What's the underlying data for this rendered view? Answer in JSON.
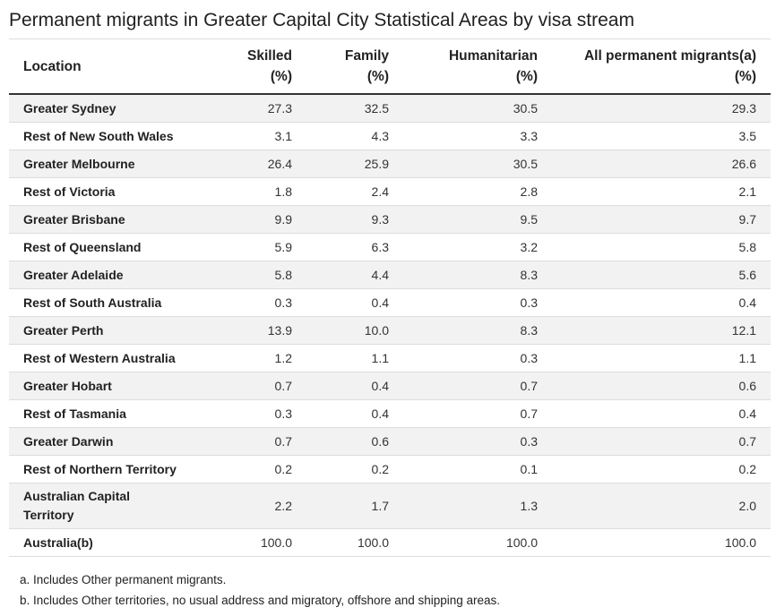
{
  "title": "Permanent migrants in Greater Capital City Statistical Areas by visa stream",
  "table": {
    "headers": [
      {
        "line1": "Location",
        "line2": ""
      },
      {
        "line1": "Skilled",
        "line2": "(%)"
      },
      {
        "line1": "Family",
        "line2": "(%)"
      },
      {
        "line1": "Humanitarian",
        "line2": "(%)"
      },
      {
        "line1": "All permanent migrants(a)",
        "line2": "(%)"
      }
    ],
    "rows": [
      {
        "location": "Greater Sydney",
        "skilled": "27.3",
        "family": "32.5",
        "humanitarian": "30.5",
        "all": "29.3"
      },
      {
        "location": "Rest of New South Wales",
        "skilled": "3.1",
        "family": "4.3",
        "humanitarian": "3.3",
        "all": "3.5"
      },
      {
        "location": "Greater Melbourne",
        "skilled": "26.4",
        "family": "25.9",
        "humanitarian": "30.5",
        "all": "26.6"
      },
      {
        "location": "Rest of Victoria",
        "skilled": "1.8",
        "family": "2.4",
        "humanitarian": "2.8",
        "all": "2.1"
      },
      {
        "location": "Greater Brisbane",
        "skilled": "9.9",
        "family": "9.3",
        "humanitarian": "9.5",
        "all": "9.7"
      },
      {
        "location": "Rest of Queensland",
        "skilled": "5.9",
        "family": "6.3",
        "humanitarian": "3.2",
        "all": "5.8"
      },
      {
        "location": "Greater Adelaide",
        "skilled": "5.8",
        "family": "4.4",
        "humanitarian": "8.3",
        "all": "5.6"
      },
      {
        "location": "Rest of South Australia",
        "skilled": "0.3",
        "family": "0.4",
        "humanitarian": "0.3",
        "all": "0.4"
      },
      {
        "location": "Greater Perth",
        "skilled": "13.9",
        "family": "10.0",
        "humanitarian": "8.3",
        "all": "12.1"
      },
      {
        "location": "Rest of Western Australia",
        "skilled": "1.2",
        "family": "1.1",
        "humanitarian": "0.3",
        "all": "1.1"
      },
      {
        "location": "Greater Hobart",
        "skilled": "0.7",
        "family": "0.4",
        "humanitarian": "0.7",
        "all": "0.6"
      },
      {
        "location": "Rest of Tasmania",
        "skilled": "0.3",
        "family": "0.4",
        "humanitarian": "0.7",
        "all": "0.4"
      },
      {
        "location": "Greater Darwin",
        "skilled": "0.7",
        "family": "0.6",
        "humanitarian": "0.3",
        "all": "0.7"
      },
      {
        "location": "Rest of Northern Territory",
        "skilled": "0.2",
        "family": "0.2",
        "humanitarian": "0.1",
        "all": "0.2"
      },
      {
        "location": "Australian Capital Territory",
        "skilled": "2.2",
        "family": "1.7",
        "humanitarian": "1.3",
        "all": "2.0"
      },
      {
        "location": "Australia(b)",
        "skilled": "100.0",
        "family": "100.0",
        "humanitarian": "100.0",
        "all": "100.0"
      }
    ]
  },
  "notes": [
    "a. Includes Other permanent migrants.",
    "b. Includes Other territories, no usual address and migratory, offshore and shipping areas."
  ]
}
